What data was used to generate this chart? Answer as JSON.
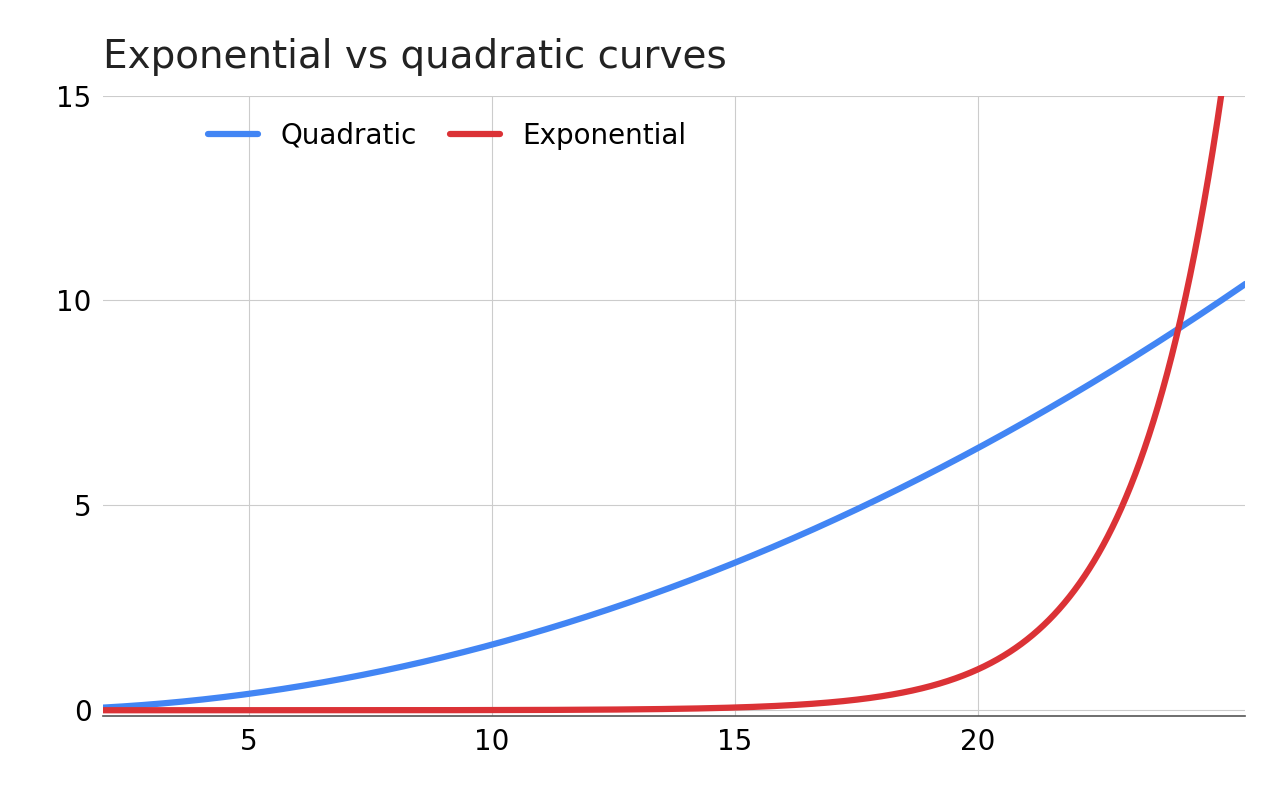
{
  "title": "Exponential vs quadratic curves",
  "quadratic_label": "Quadratic",
  "exponential_label": "Exponential",
  "quadratic_color": "#4285F4",
  "exponential_color": "#DB3236",
  "background_color": "#ffffff",
  "grid_color": "#cccccc",
  "x_min": 2,
  "x_max": 25.5,
  "y_min": -0.15,
  "y_max": 15,
  "x_ticks": [
    5,
    10,
    15,
    20
  ],
  "y_ticks": [
    0,
    5,
    10,
    15
  ],
  "line_width": 4.5,
  "title_fontsize": 28,
  "tick_fontsize": 20,
  "legend_fontsize": 20,
  "quad_scale": 0.016,
  "exp_k_numerator": 15,
  "exp_k_denominator": 5.0,
  "exp_shift": 20.0
}
